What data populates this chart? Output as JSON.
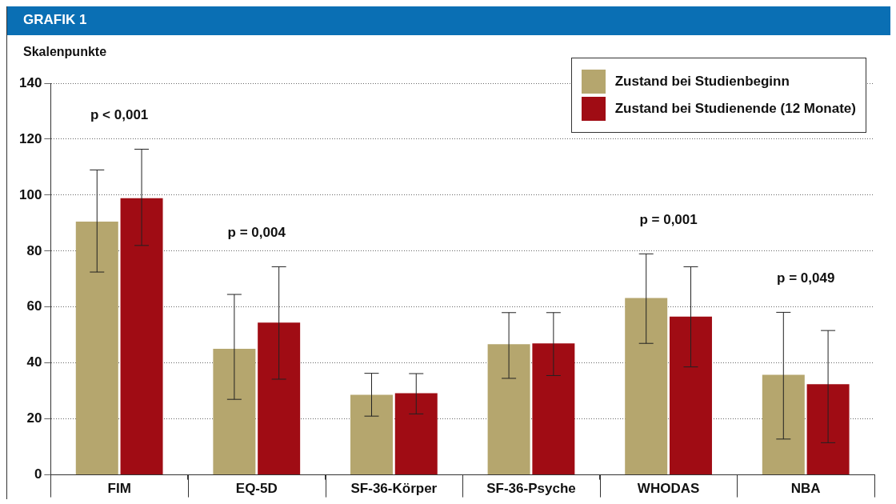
{
  "chart_data": {
    "type": "bar",
    "title": "GRAFIK 1",
    "ylabel": "Skalenpunkte",
    "categories": [
      "FIM",
      "EQ-5D",
      "SF-36-Körper",
      "SF-36-Psyche",
      "WHODAS",
      "NBA"
    ],
    "series": [
      {
        "name": "Zustand bei Studienbeginn",
        "color": "#b5a66e",
        "values": [
          90.5,
          45.1,
          28.6,
          46.7,
          63.2,
          35.8
        ],
        "errors": [
          [
            72.5,
            109
          ],
          [
            27,
            64.5
          ],
          [
            21,
            36.3
          ],
          [
            34.5,
            58
          ],
          [
            47,
            79
          ],
          [
            12.8,
            58.1
          ]
        ]
      },
      {
        "name": "Zustand bei Studienende (12 Monate)",
        "color": "#a00c14",
        "values": [
          98.9,
          54.4,
          29.2,
          47,
          56.6,
          32.4
        ],
        "errors": [
          [
            82,
            116.4
          ],
          [
            34.2,
            74.4
          ],
          [
            21.8,
            36.2
          ],
          [
            35.5,
            58
          ],
          [
            38.6,
            74.4
          ],
          [
            11.5,
            51.6
          ]
        ]
      }
    ],
    "ylim": [
      0,
      140
    ],
    "yticks": [
      0,
      20,
      40,
      60,
      80,
      100,
      120,
      140
    ],
    "grid": "y",
    "legend": "top right",
    "annotations": [
      "p < 0,001",
      "p = 0,004",
      "p = 0,001",
      "p = 0,049"
    ]
  }
}
